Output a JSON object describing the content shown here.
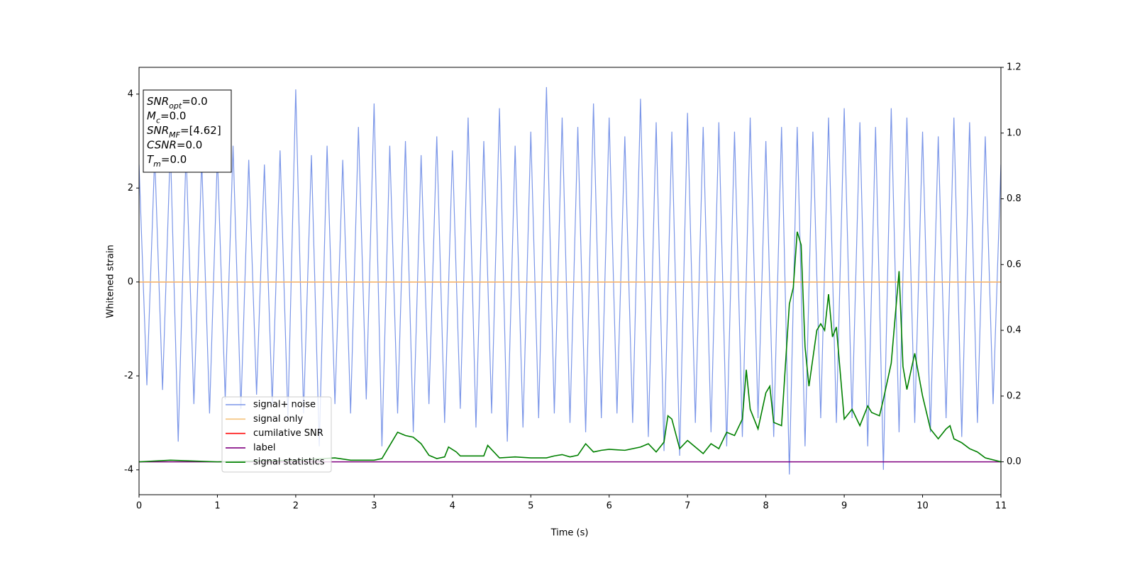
{
  "chart_data": {
    "type": "line",
    "xlabel": "Time (s)",
    "ylabel": "Whitened strain",
    "xlim": [
      0,
      11
    ],
    "xticks": [
      0,
      1,
      2,
      3,
      4,
      5,
      6,
      7,
      8,
      9,
      10,
      11
    ],
    "ylim": [
      -4.53,
      4.57
    ],
    "yticks": [
      -4,
      -2,
      0,
      2,
      4
    ],
    "y2lim": [
      -0.1,
      1.2
    ],
    "y2ticks": [
      {
        "value": 0,
        "label": "0.0"
      },
      {
        "value": 0.2,
        "label": "0.2"
      },
      {
        "value": 0.4,
        "label": "0.4"
      },
      {
        "value": 0.6,
        "label": "0.6"
      },
      {
        "value": 0.8,
        "label": "0.8"
      },
      {
        "value": 1.0,
        "label": "1.0"
      },
      {
        "value": 1.2,
        "label": "1.2"
      }
    ],
    "legend": "lower left",
    "annotation": [
      {
        "symbol": "SNR",
        "sub": "opt",
        "text": "=0.0"
      },
      {
        "symbol": "M",
        "sub": "c",
        "text": "=0.0"
      },
      {
        "symbol": "SNR",
        "sub": "MF",
        "text": "=[4.62]"
      },
      {
        "symbol": "CSNR",
        "sub": "",
        "text": "=0.0"
      },
      {
        "symbol": "T",
        "sub": "m",
        "text": "=0.0"
      }
    ],
    "series": [
      {
        "name": "signal+ noise",
        "color": "#7b96e8",
        "x": [
          0,
          0.1,
          0.2,
          0.3,
          0.4,
          0.5,
          0.6,
          0.7,
          0.8,
          0.9,
          1,
          1.1,
          1.2,
          1.3,
          1.4,
          1.5,
          1.6,
          1.7,
          1.8,
          1.9,
          2,
          2.1,
          2.2,
          2.3,
          2.4,
          2.5,
          2.6,
          2.7,
          2.8,
          2.9,
          3,
          3.1,
          3.2,
          3.3,
          3.4,
          3.5,
          3.6,
          3.7,
          3.8,
          3.9,
          4,
          4.1,
          4.2,
          4.3,
          4.4,
          4.5,
          4.6,
          4.7,
          4.8,
          4.9,
          5,
          5.1,
          5.2,
          5.3,
          5.4,
          5.5,
          5.6,
          5.7,
          5.8,
          5.9,
          6,
          6.1,
          6.2,
          6.3,
          6.4,
          6.5,
          6.6,
          6.7,
          6.8,
          6.9,
          7,
          7.1,
          7.2,
          7.3,
          7.4,
          7.5,
          7.6,
          7.7,
          7.8,
          7.9,
          8,
          8.1,
          8.2,
          8.3,
          8.4,
          8.5,
          8.6,
          8.7,
          8.8,
          8.9,
          9,
          9.1,
          9.2,
          9.3,
          9.4,
          9.5,
          9.6,
          9.7,
          9.8,
          9.9,
          10,
          10.1,
          10.2,
          10.3,
          10.4,
          10.5,
          10.6,
          10.7,
          10.8,
          10.9,
          11
        ],
        "values": [
          2.5,
          -2.2,
          2.7,
          -2.3,
          2.9,
          -3.4,
          2.8,
          -2.6,
          2.6,
          -2.8,
          2.7,
          -2.5,
          2.9,
          -2.7,
          2.6,
          -2.4,
          2.5,
          -2.6,
          2.8,
          -2.9,
          4.1,
          -2.8,
          2.7,
          -3.5,
          2.9,
          -2.6,
          2.6,
          -2.8,
          3.3,
          -2.5,
          3.8,
          -3.5,
          2.9,
          -2.8,
          3.0,
          -3.2,
          2.7,
          -2.6,
          3.1,
          -3.0,
          2.8,
          -2.7,
          3.5,
          -3.1,
          3.0,
          -2.8,
          3.7,
          -3.4,
          2.9,
          -3.1,
          3.2,
          -2.9,
          4.15,
          -2.8,
          3.5,
          -3.0,
          3.3,
          -3.2,
          3.8,
          -2.9,
          3.5,
          -2.8,
          3.1,
          -3.0,
          3.9,
          -3.3,
          3.4,
          -3.6,
          3.2,
          -3.7,
          3.6,
          -3.0,
          3.3,
          -3.2,
          3.4,
          -3.5,
          3.2,
          -3.3,
          3.5,
          -2.9,
          3.0,
          -3.3,
          3.3,
          -4.1,
          3.3,
          -3.5,
          3.2,
          -2.9,
          3.5,
          -3.0,
          3.7,
          -2.9,
          3.4,
          -3.5,
          3.3,
          -4.0,
          3.7,
          -3.2,
          3.5,
          -3.0,
          3.2,
          -3.2,
          3.1,
          -2.9,
          3.5,
          -3.3,
          3.4,
          -3.0,
          3.1,
          -2.6,
          2.5
        ]
      },
      {
        "name": "signal only",
        "color": "#f5c27a",
        "x": [
          0,
          11
        ],
        "values": [
          0,
          0
        ]
      },
      {
        "name": "cumilative SNR",
        "color": "#ff0000",
        "x": [
          0,
          11
        ],
        "values": [
          0,
          0
        ]
      },
      {
        "name": "label",
        "color": "#800080",
        "axis": "y2",
        "x": [
          0,
          11
        ],
        "values": [
          0,
          0
        ]
      },
      {
        "name": "signal statistics",
        "color": "#008000",
        "axis": "y2",
        "x": [
          0,
          0.4,
          1,
          2,
          2.5,
          2.7,
          3.0,
          3.1,
          3.2,
          3.3,
          3.4,
          3.5,
          3.6,
          3.7,
          3.8,
          3.9,
          3.95,
          4.05,
          4.1,
          4.4,
          4.45,
          4.6,
          4.8,
          5.0,
          5.2,
          5.3,
          5.4,
          5.5,
          5.6,
          5.7,
          5.8,
          5.9,
          6.0,
          6.2,
          6.4,
          6.5,
          6.6,
          6.7,
          6.75,
          6.8,
          6.9,
          7.0,
          7.1,
          7.2,
          7.3,
          7.4,
          7.5,
          7.6,
          7.7,
          7.75,
          7.8,
          7.9,
          8.0,
          8.05,
          8.1,
          8.2,
          8.3,
          8.35,
          8.4,
          8.45,
          8.5,
          8.55,
          8.65,
          8.7,
          8.75,
          8.8,
          8.85,
          8.9,
          9.0,
          9.1,
          9.2,
          9.3,
          9.35,
          9.45,
          9.5,
          9.6,
          9.7,
          9.75,
          9.8,
          9.9,
          10.0,
          10.1,
          10.2,
          10.3,
          10.35,
          10.4,
          10.5,
          10.6,
          10.7,
          10.8,
          11.0
        ],
        "values": [
          0,
          0.005,
          0,
          0.005,
          0.012,
          0.005,
          0.005,
          0.01,
          0.05,
          0.09,
          0.08,
          0.075,
          0.055,
          0.02,
          0.01,
          0.015,
          0.045,
          0.03,
          0.018,
          0.018,
          0.05,
          0.012,
          0.015,
          0.012,
          0.012,
          0.018,
          0.022,
          0.015,
          0.02,
          0.055,
          0.03,
          0.035,
          0.038,
          0.035,
          0.045,
          0.055,
          0.03,
          0.06,
          0.14,
          0.13,
          0.04,
          0.065,
          0.045,
          0.025,
          0.055,
          0.04,
          0.09,
          0.08,
          0.13,
          0.28,
          0.16,
          0.1,
          0.21,
          0.23,
          0.12,
          0.11,
          0.48,
          0.53,
          0.7,
          0.66,
          0.35,
          0.23,
          0.4,
          0.42,
          0.4,
          0.51,
          0.38,
          0.41,
          0.13,
          0.16,
          0.11,
          0.17,
          0.15,
          0.14,
          0.19,
          0.3,
          0.58,
          0.29,
          0.22,
          0.33,
          0.2,
          0.1,
          0.07,
          0.1,
          0.11,
          0.07,
          0.058,
          0.04,
          0.03,
          0.012,
          0
        ]
      }
    ]
  }
}
